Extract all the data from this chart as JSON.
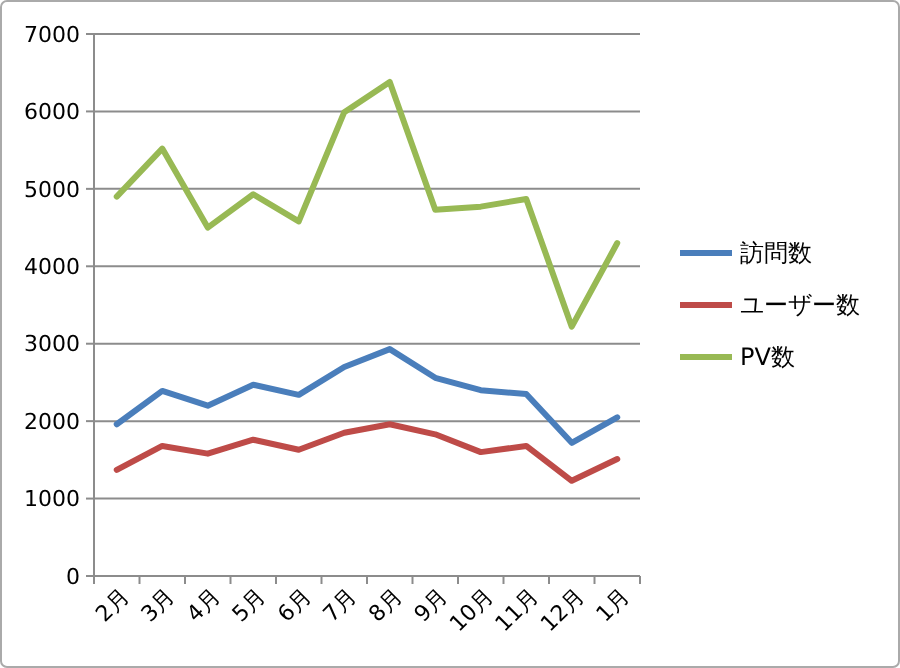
{
  "chart_data": {
    "type": "line",
    "categories": [
      "2月",
      "3月",
      "4月",
      "5月",
      "6月",
      "7月",
      "8月",
      "9月",
      "10月",
      "11月",
      "12月",
      "1月"
    ],
    "series": [
      {
        "name": "訪問数",
        "color": "#4a7ebb",
        "values": [
          1960,
          2390,
          2200,
          2470,
          2340,
          2700,
          2930,
          2560,
          2400,
          2350,
          1720,
          2050
        ]
      },
      {
        "name": "ユーザー数",
        "color": "#be4b48",
        "values": [
          1370,
          1680,
          1580,
          1760,
          1630,
          1850,
          1960,
          1830,
          1600,
          1680,
          1230,
          1510
        ]
      },
      {
        "name": "PV数",
        "color": "#98b954",
        "values": [
          4900,
          5520,
          4500,
          4930,
          4580,
          5990,
          6380,
          4730,
          4770,
          4870,
          3220,
          4300
        ]
      }
    ],
    "ylim": [
      0,
      7000
    ],
    "yticks": [
      0,
      1000,
      2000,
      3000,
      4000,
      5000,
      6000,
      7000
    ],
    "grid": "y",
    "legend": "right",
    "marker": "none",
    "line_style": "solid"
  }
}
